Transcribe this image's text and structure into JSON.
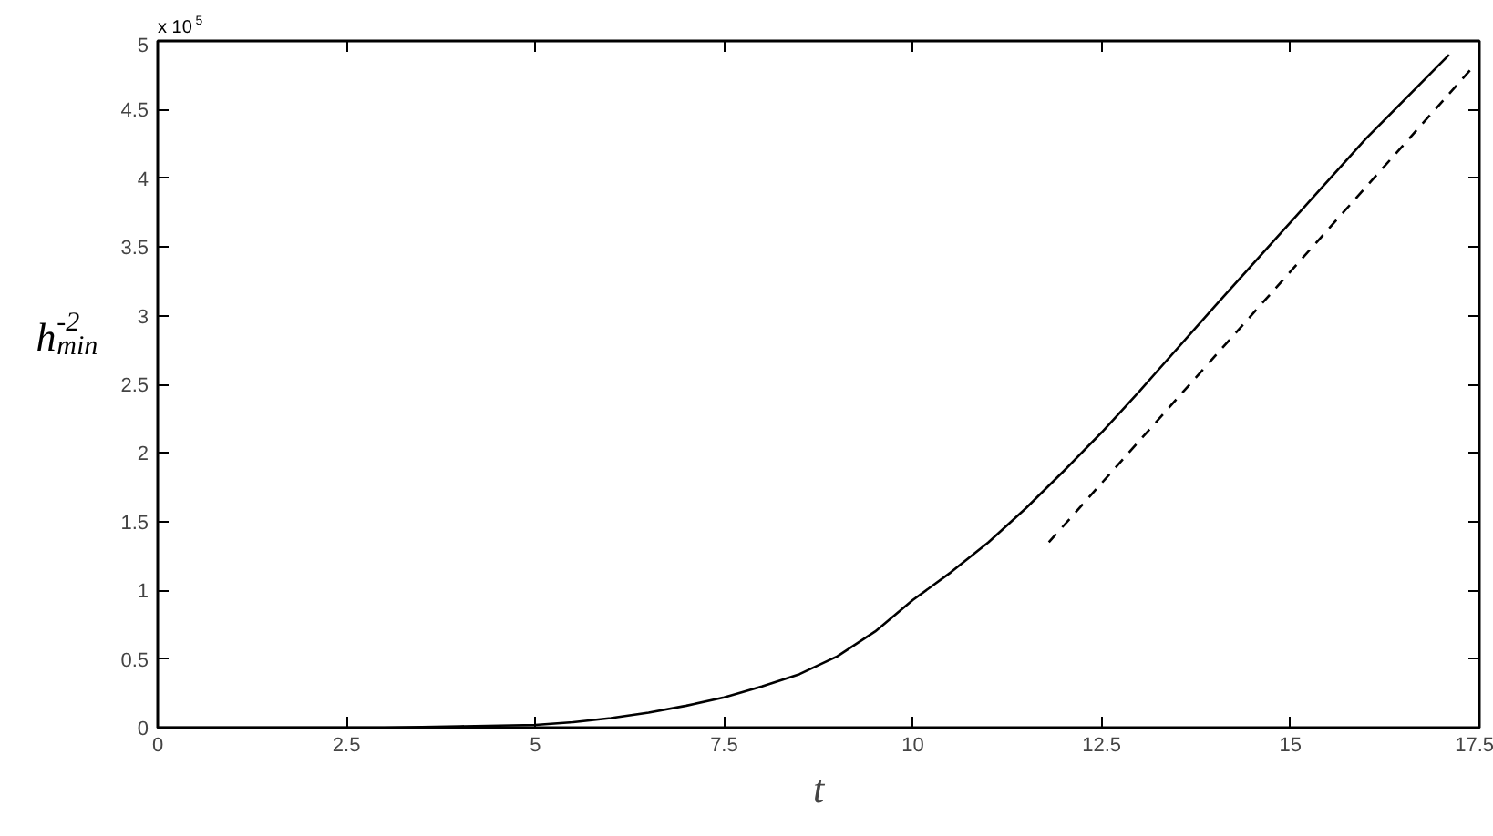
{
  "chart_data": {
    "type": "line",
    "xlabel": "t",
    "ylabel": "h$_{min}$$^{-2}$",
    "annotations": [
      "x 10$^{5}$"
    ],
    "xlim": [
      0,
      17.5
    ],
    "xticks": [
      0,
      2.5,
      5,
      7.5,
      10,
      12.5,
      15,
      17.5
    ],
    "ylim": [
      0,
      5
    ],
    "yticks": [
      0,
      0.5,
      1,
      1.5,
      2,
      2.5,
      3,
      3.5,
      4,
      4.5,
      5
    ],
    "series": [
      {
        "color": "#000000",
        "line_style": "solid",
        "x": [
          0,
          2,
          3,
          4,
          5,
          5.5,
          6,
          6.5,
          7,
          7.5,
          8,
          8.5,
          9,
          9.5,
          10,
          10.5,
          11,
          11.5,
          12,
          12.5,
          13,
          14,
          15,
          16,
          17.1
        ],
        "values": [
          0,
          0,
          0,
          0.01,
          0.02,
          0.04,
          0.07,
          0.11,
          0.16,
          0.22,
          0.3,
          0.39,
          0.52,
          0.7,
          0.93,
          1.13,
          1.35,
          1.6,
          1.87,
          2.15,
          2.45,
          3.07,
          3.68,
          4.29,
          4.9
        ]
      },
      {
        "color": "#000000",
        "line_style": "dashed",
        "x": [
          11.8,
          17.4
        ],
        "values": [
          1.35,
          4.8
        ]
      }
    ]
  }
}
